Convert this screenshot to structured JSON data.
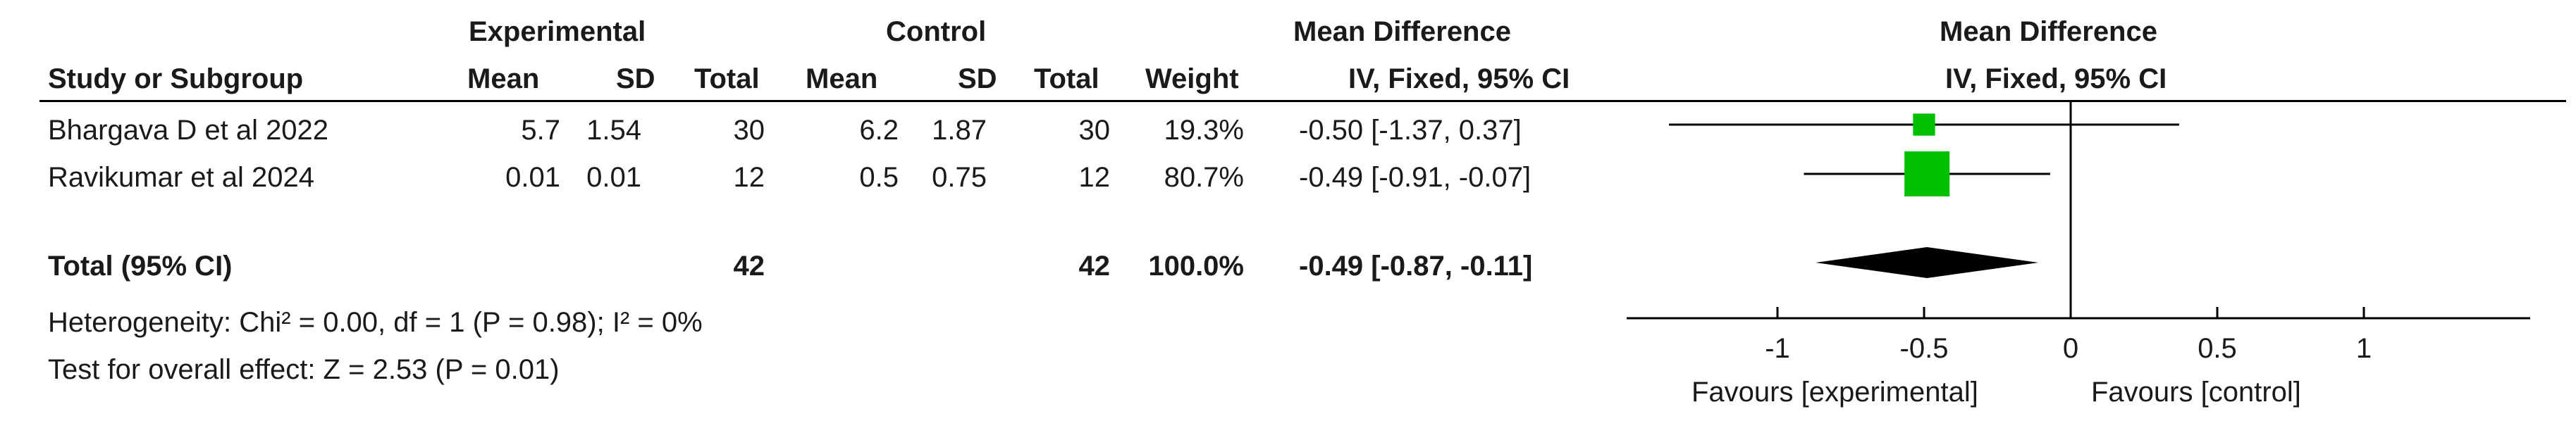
{
  "header": {
    "experimental": "Experimental",
    "control": "Control",
    "mean_difference": "Mean Difference",
    "study_col": "Study or Subgroup",
    "mean": "Mean",
    "sd": "SD",
    "total": "Total",
    "weight": "Weight",
    "method": "IV, Fixed, 95% CI",
    "plot_title": "Mean Difference",
    "plot_method": "IV, Fixed, 95% CI"
  },
  "studies": [
    {
      "name": "Bhargava D et al 2022",
      "exp_mean": "5.7",
      "exp_sd": "1.54",
      "exp_total": "30",
      "ctl_mean": "6.2",
      "ctl_sd": "1.87",
      "ctl_total": "30",
      "weight": "19.3%",
      "ci_text": "-0.50 [-1.37, 0.37]"
    },
    {
      "name": "Ravikumar et al 2024",
      "exp_mean": "0.01",
      "exp_sd": "0.01",
      "exp_total": "12",
      "ctl_mean": "0.5",
      "ctl_sd": "0.75",
      "ctl_total": "12",
      "weight": "80.7%",
      "ci_text": "-0.49 [-0.91, -0.07]"
    }
  ],
  "total": {
    "label": "Total (95% CI)",
    "exp_total": "42",
    "ctl_total": "42",
    "weight": "100.0%",
    "ci_text": "-0.49 [-0.87, -0.11]"
  },
  "heterogeneity": "Heterogeneity: Chi² = 0.00, df = 1 (P = 0.98); I² = 0%",
  "overall_effect": "Test for overall effect: Z = 2.53 (P = 0.01)",
  "axis": {
    "ticks": [
      "-1",
      "-0.5",
      "0",
      "0.5",
      "1"
    ],
    "favours_left": "Favours [experimental]",
    "favours_right": "Favours [control]"
  },
  "colors": {
    "marker": "#00c000",
    "diamond": "#000000",
    "line": "#000000"
  },
  "chart_data": {
    "type": "forest",
    "xlim": [
      -1.4,
      1.5
    ],
    "xticks": [
      -1,
      -0.5,
      0,
      0.5,
      1
    ],
    "studies": [
      {
        "name": "Bhargava D et al 2022",
        "md": -0.5,
        "ci_low": -1.37,
        "ci_high": 0.37,
        "weight": 19.3
      },
      {
        "name": "Ravikumar et al 2024",
        "md": -0.49,
        "ci_low": -0.91,
        "ci_high": -0.07,
        "weight": 80.7
      }
    ],
    "pooled": {
      "md": -0.49,
      "ci_low": -0.87,
      "ci_high": -0.11
    }
  }
}
